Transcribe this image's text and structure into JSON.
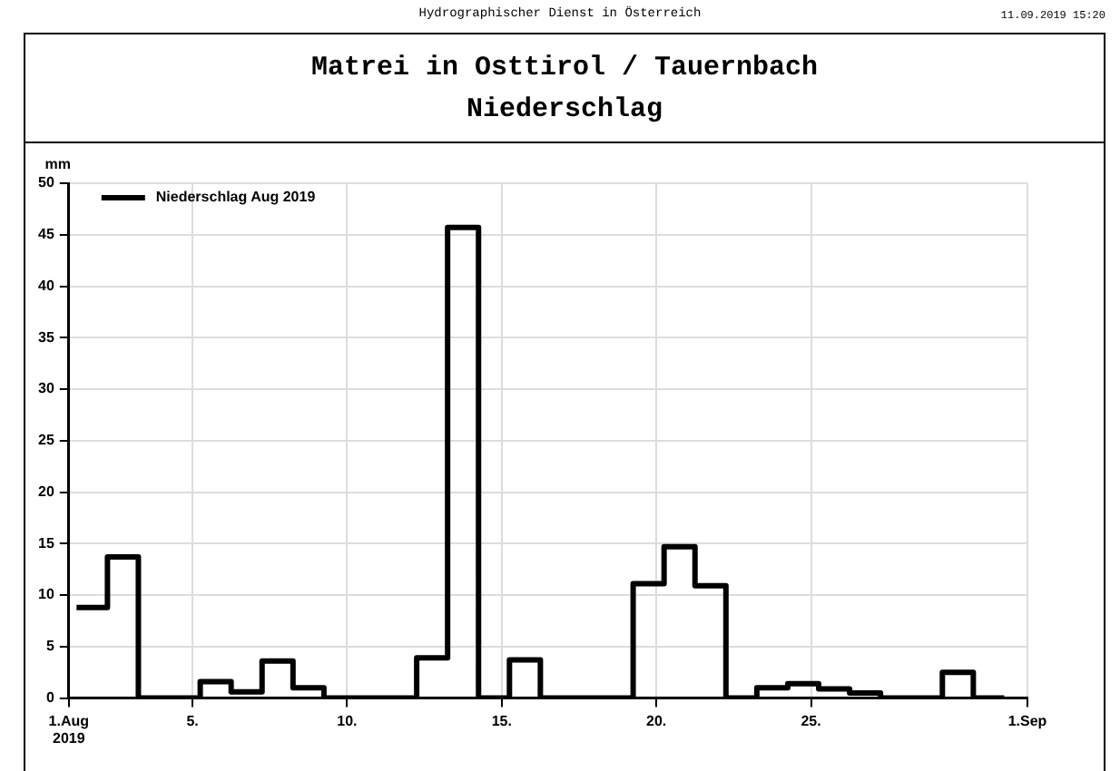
{
  "chart_data": {
    "type": "step",
    "title": "Matrei in Osttirol / Tauernbach",
    "subtitle": "Niederschlag",
    "ylabel": "mm",
    "annotations": [
      "Hydrographischer Dienst in Österreich",
      "11.09.2019 15:20"
    ],
    "x": [
      1.25,
      2.25,
      3.25,
      4.25,
      5.25,
      6.25,
      7.25,
      8.25,
      9.25,
      10.25,
      11.25,
      12.25,
      13.25,
      14.25,
      15.25,
      16.25,
      17.25,
      18.25,
      19.25,
      20.25,
      21.25,
      22.25,
      23.25,
      24.25,
      25.25,
      26.25,
      27.25,
      28.25,
      29.25,
      30.25,
      31.25
    ],
    "series": [
      {
        "name": "Niederschlag Aug 2019",
        "color": "#000000",
        "values": [
          8.8,
          13.7,
          0,
          0,
          1.6,
          0.6,
          3.6,
          1,
          0,
          0,
          0,
          3.9,
          45.7,
          0,
          3.7,
          0,
          0,
          0,
          11.1,
          14.7,
          10.9,
          0,
          1,
          1.4,
          0.9,
          0.5,
          0,
          0,
          2.5,
          0,
          0
        ]
      }
    ],
    "xlim": [
      1,
      32
    ],
    "xticks": [
      {
        "value": 1,
        "label": "1.Aug\n2019"
      },
      {
        "value": 5,
        "label": "5."
      },
      {
        "value": 10,
        "label": "10."
      },
      {
        "value": 15,
        "label": "15."
      },
      {
        "value": 20,
        "label": "20."
      },
      {
        "value": 25,
        "label": "25."
      },
      {
        "value": 32,
        "label": "1.Sep"
      }
    ],
    "ylim": [
      0,
      50
    ],
    "yticks": [
      0,
      5,
      10,
      15,
      20,
      25,
      30,
      35,
      40,
      45,
      50
    ],
    "grid": true,
    "legend": "top left",
    "marker": "none",
    "line_style": "solid"
  }
}
